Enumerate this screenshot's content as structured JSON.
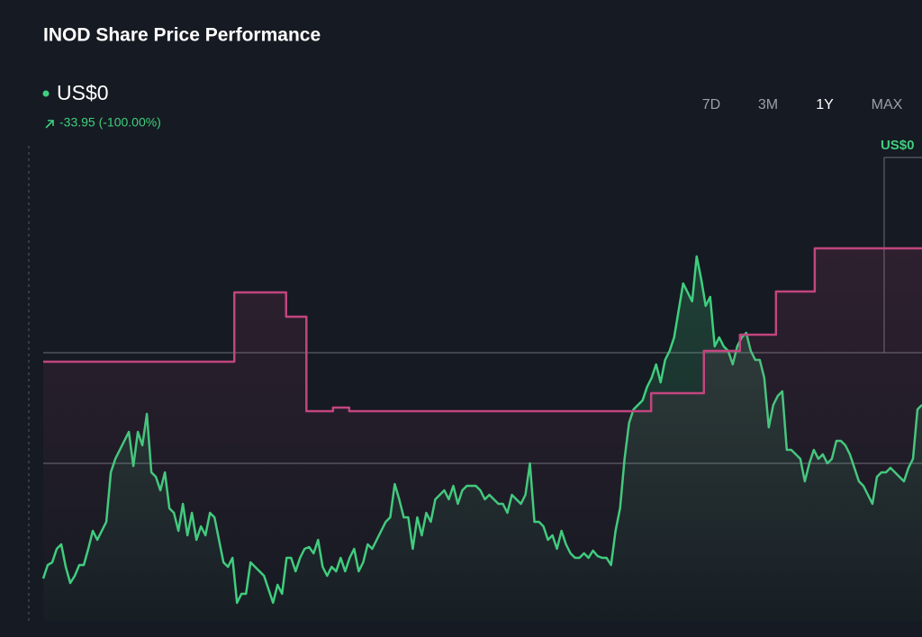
{
  "header": {
    "title": "INOD Share Price Performance",
    "price": "US$0",
    "change": "-33.95 (-100.00%)"
  },
  "ranges": {
    "options": [
      "7D",
      "3M",
      "1Y",
      "MAX"
    ],
    "selected_index": 2
  },
  "chart_data": {
    "type": "line",
    "xlim": [
      0,
      195
    ],
    "ylim": [
      0,
      53
    ],
    "hlines": [
      29.8,
      17.5
    ],
    "marker": {
      "x": 186.6,
      "value": 51.5,
      "label": "US$0",
      "color": "#3ecf7e"
    },
    "series": [
      {
        "color": "#3ecf7e",
        "values": [
          4.7,
          6.2,
          6.5,
          8,
          8.5,
          6,
          4.2,
          5,
          6.2,
          6.2,
          8,
          10,
          9,
          10,
          11,
          16.5,
          18,
          19,
          20,
          21,
          17.2,
          21,
          19.5,
          23,
          16.5,
          16,
          14.5,
          16.5,
          12.5,
          12,
          10,
          13,
          9.5,
          12,
          9,
          10.5,
          9.5,
          12,
          11.5,
          9,
          6.5,
          6,
          7,
          2,
          3,
          3,
          6.5,
          6,
          5.5,
          5,
          3.5,
          2,
          4,
          3,
          7,
          7,
          5.5,
          7,
          8,
          8.2,
          7.5,
          9,
          6,
          5,
          6,
          5.5,
          7,
          5.5,
          7,
          8,
          5.5,
          6.5,
          8.5,
          8,
          9,
          10,
          11,
          11.5,
          15.2,
          13.5,
          11.5,
          11.5,
          8,
          11.5,
          9.5,
          12,
          11,
          13.5,
          14,
          14.5,
          13.5,
          15,
          13,
          14.5,
          15,
          15,
          15,
          14.5,
          13.5,
          14,
          13.5,
          13,
          13,
          12,
          14,
          13.5,
          13,
          14,
          17.5,
          11,
          11,
          10.5,
          9,
          9.5,
          8,
          10,
          8.5,
          7.5,
          7,
          7,
          7.5,
          7,
          7.8,
          7.2,
          7,
          7,
          6.2,
          10,
          12.5,
          18,
          22,
          23.5,
          24,
          24.5,
          26,
          27,
          28.5,
          26.5,
          29,
          30,
          31.5,
          34.5,
          37.5,
          36.5,
          35.5,
          40.5,
          38,
          35,
          36,
          30.5,
          31.5,
          30.5,
          30,
          28.5,
          30.5,
          31.5,
          32,
          30,
          29,
          29,
          27,
          21.5,
          24,
          25,
          25.5,
          19,
          19,
          18.5,
          18,
          15.5,
          17.5,
          19,
          18,
          18.5,
          17.5,
          18,
          20,
          20,
          19.5,
          18.5,
          17,
          15.5,
          15,
          14,
          13,
          16,
          16.5,
          16.5,
          17,
          16.5,
          16,
          15.5,
          17,
          18,
          23.5,
          24
        ]
      },
      {
        "color": "#c2457f",
        "step": true,
        "x": [
          0,
          42.4,
          53.9,
          58.4,
          64.3,
          67.9,
          134.9,
          146.6,
          154.6,
          162.6,
          171.2,
          195
        ],
        "values": [
          28.8,
          36.5,
          33.8,
          23.3,
          23.7,
          23.3,
          25.3,
          30,
          31.8,
          36.6,
          41.4,
          41.4
        ]
      }
    ]
  }
}
